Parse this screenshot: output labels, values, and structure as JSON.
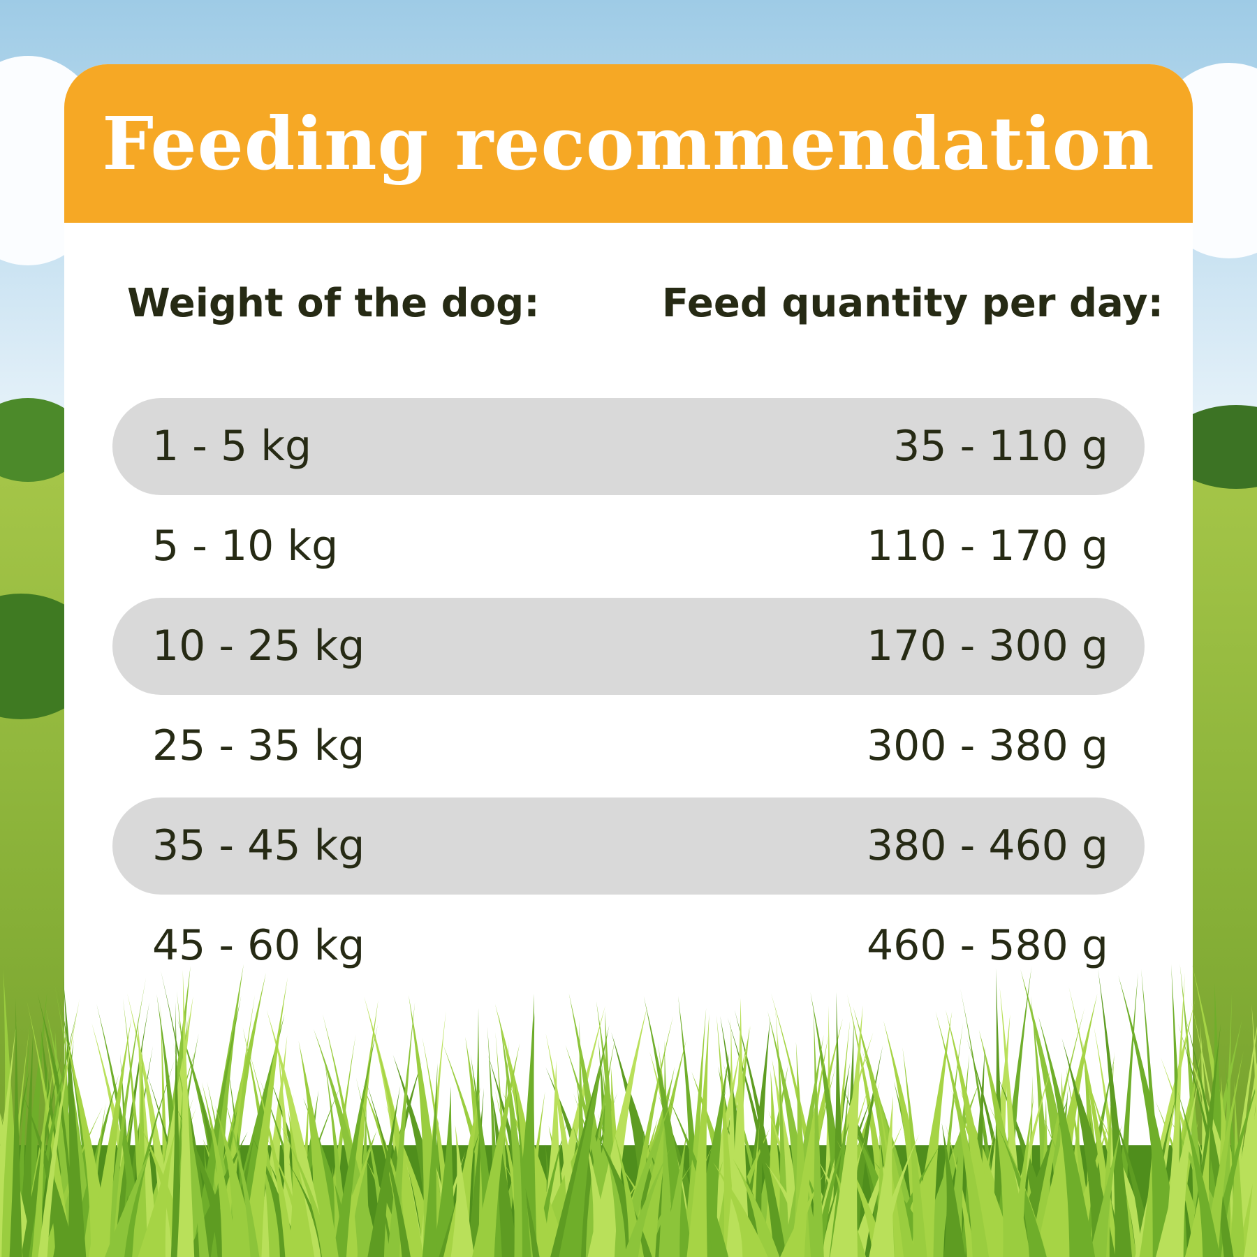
{
  "header": {
    "title": "Feeding recommendation"
  },
  "table": {
    "headers": [
      "Weight of the dog:",
      "Feed quantity per day:"
    ],
    "rows": [
      [
        "1 - 5 kg",
        "35 - 110 g"
      ],
      [
        "5 - 10 kg",
        "110 - 170 g"
      ],
      [
        "10 - 25 kg",
        "170 - 300 g"
      ],
      [
        "25 - 35 kg",
        "300 - 380 g"
      ],
      [
        "35 - 45 kg",
        "380 - 460 g"
      ],
      [
        "45 - 60 kg",
        "460 - 580 g"
      ]
    ]
  }
}
